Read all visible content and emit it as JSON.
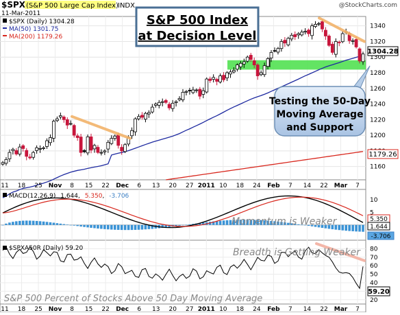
{
  "header": {
    "ticker": "$SPX",
    "name": "(S&P 500 Large Cap Index)",
    "exchange": "INDX",
    "date": "11-Mar-2011",
    "watermark": "@StockCharts.com",
    "legend_price": "$SPX (Daily) 1304.28",
    "legend_ma50": "MA(50) 1301.75",
    "legend_ma200": "MA(200) 1179.26"
  },
  "annotations": {
    "title_line1": "S&P 500 Index",
    "title_line2": "at Decision Level",
    "callout_line1": "Testing the 50-Day",
    "callout_line2": "Moving Average",
    "callout_line3": "and Support",
    "macd_note": "Momentum is Weaker",
    "breadth_note": "Breadth is Getting Weaker",
    "bottom_note": "S&P 500 Percent of Stocks Above 50 Day Moving Average"
  },
  "price_labels": {
    "last": "1304.28",
    "ma200": "1179.26"
  },
  "macd": {
    "legend_prefix": "MACD(12,26,9)",
    "macd_value": "1.644",
    "signal_value": "5.350",
    "hist_value": "-3.706"
  },
  "breadth": {
    "legend": "$SPXA50R (Daily) 59.20",
    "last_label": "59.20"
  },
  "chart_data": {
    "type": "candlestick",
    "x_tick_labels": [
      "11",
      "18",
      "25",
      "Nov",
      "8",
      "15",
      "22",
      "Dec",
      "6",
      "13",
      "20",
      "27",
      "2011",
      "10",
      "18",
      "24",
      "Feb",
      "7",
      "14",
      "22",
      "Mar",
      "7"
    ],
    "price_axis": {
      "ticks": [
        1160,
        1180,
        1200,
        1220,
        1240,
        1260,
        1280,
        1300,
        1320,
        1340
      ],
      "range": [
        1143,
        1352
      ]
    },
    "series": [
      {
        "name": "$SPX",
        "closes": [
          1165,
          1169,
          1178,
          1182,
          1176,
          1185,
          1183,
          1173,
          1171,
          1178,
          1184,
          1183,
          1184,
          1193,
          1197,
          1218,
          1221,
          1225,
          1220,
          1213,
          1215,
          1200,
          1197,
          1178,
          1179,
          1198,
          1181,
          1187,
          1178,
          1178,
          1180,
          1191,
          1196,
          1199,
          1187,
          1180,
          1188,
          1197,
          1206,
          1221,
          1224,
          1223,
          1228,
          1229,
          1236,
          1240,
          1242,
          1243,
          1242,
          1235,
          1241,
          1243,
          1247,
          1255,
          1256,
          1257,
          1258,
          1258,
          1250,
          1257,
          1272,
          1270,
          1274,
          1269,
          1276,
          1271,
          1280,
          1281,
          1283,
          1290,
          1292,
          1294,
          1300,
          1297,
          1290,
          1276,
          1280,
          1289,
          1298,
          1306,
          1308,
          1311,
          1320,
          1318,
          1324,
          1328,
          1326,
          1330,
          1332,
          1333,
          1330,
          1340,
          1342,
          1343,
          1336,
          1327,
          1315,
          1306,
          1320,
          1319,
          1330,
          1332,
          1321,
          1321,
          1313,
          1295,
          1304
        ]
      },
      {
        "name": "MA(50)",
        "first": 1116,
        "last": 1301.75
      },
      {
        "name": "MA(200)",
        "first": 1143,
        "last": 1179.26
      }
    ],
    "macd_axis": {
      "ticks": [
        10,
        5
      ],
      "range": [
        -6,
        14
      ]
    },
    "breadth_axis": {
      "ticks": [
        80,
        70,
        60,
        50,
        40,
        30,
        20
      ],
      "range": [
        15,
        90
      ]
    },
    "support_band": [
      1284,
      1296
    ]
  },
  "colors": {
    "price_up": "#000000",
    "price_down": "#c8163c",
    "ma50": "#1e2aa0",
    "ma200": "#d8261c",
    "support": "#52e152",
    "trend": "#f2b36a",
    "macd_hist": "#3a93d6",
    "callout": "#c9dcf0"
  }
}
